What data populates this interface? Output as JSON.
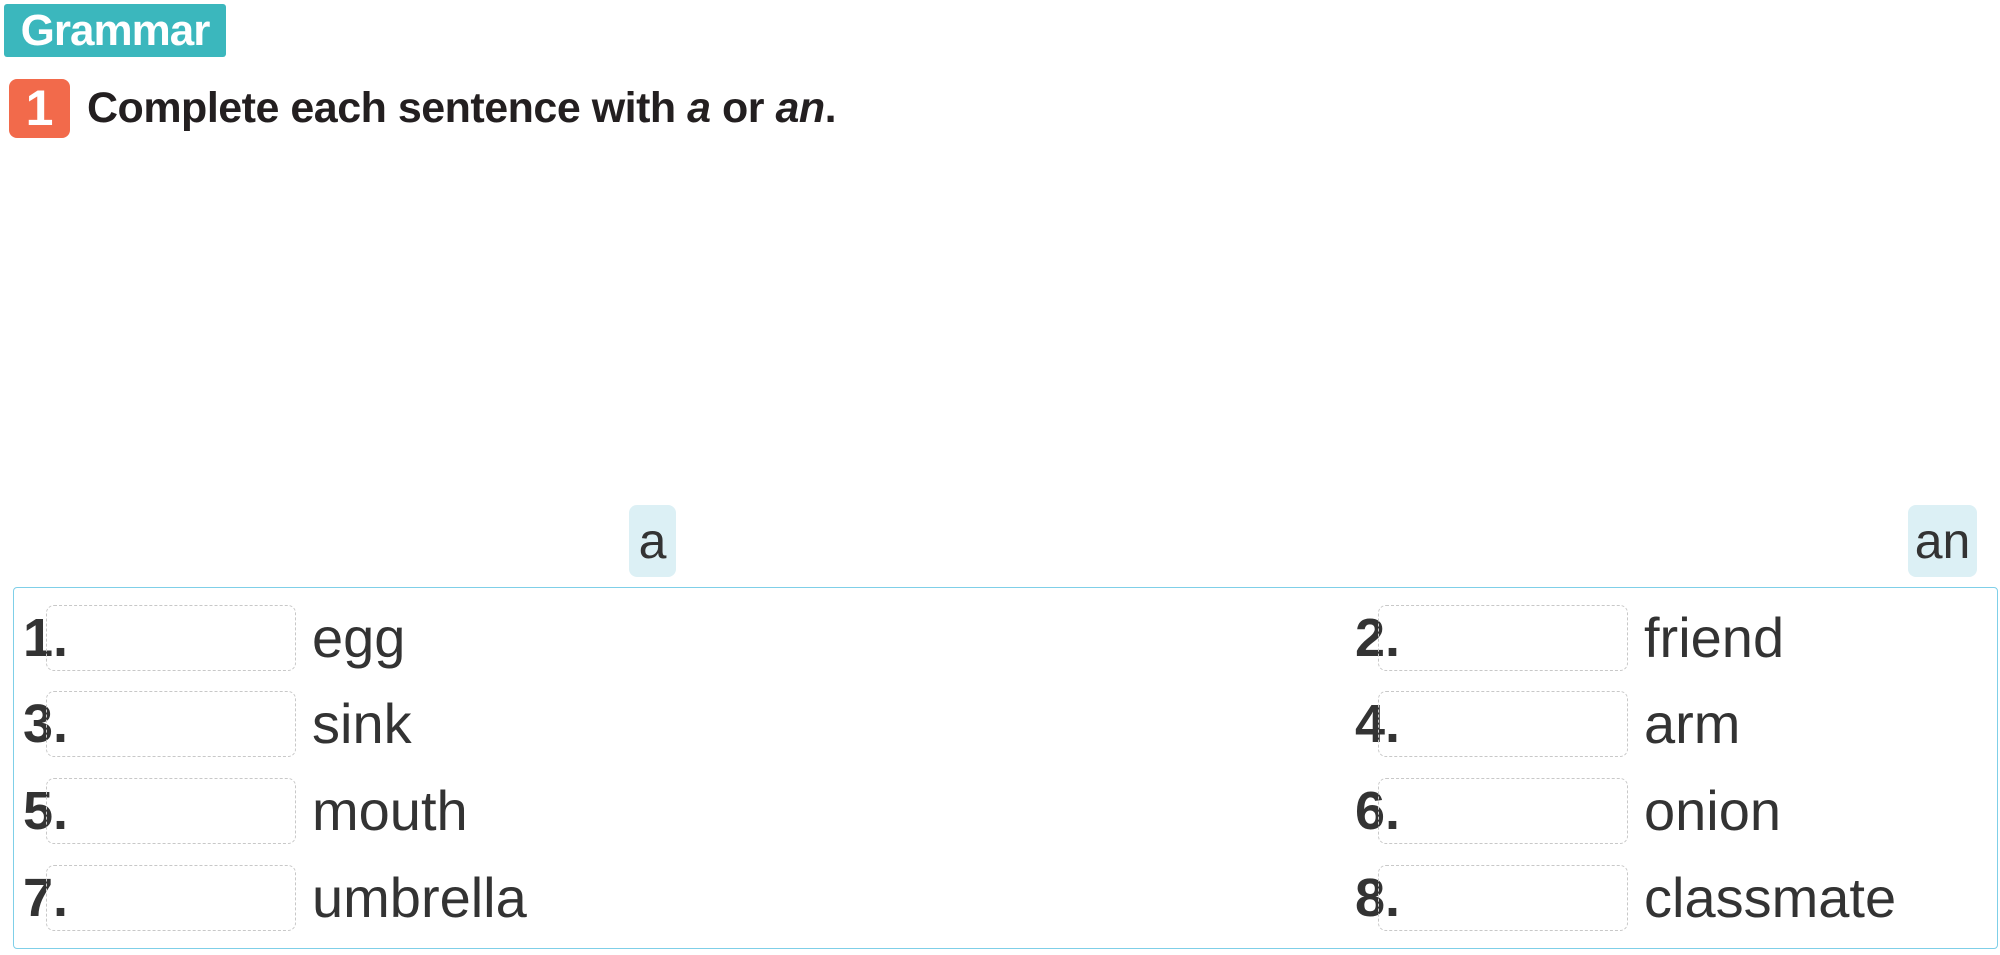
{
  "section": {
    "label": "Grammar",
    "color": "#3bb7bd"
  },
  "exercise": {
    "number": "1",
    "number_color": "#f26a4b",
    "instruction_prefix": "Complete each sentence with ",
    "option_a": "a",
    "instruction_mid": " or ",
    "option_an": "an",
    "instruction_suffix": "."
  },
  "choices": [
    "a",
    "an"
  ],
  "items": [
    {
      "num": "1.",
      "word": "egg",
      "answer": ""
    },
    {
      "num": "2.",
      "word": "friend",
      "answer": ""
    },
    {
      "num": "3.",
      "word": "sink",
      "answer": ""
    },
    {
      "num": "4.",
      "word": "arm",
      "answer": ""
    },
    {
      "num": "5.",
      "word": "mouth",
      "answer": ""
    },
    {
      "num": "6.",
      "word": "onion",
      "answer": ""
    },
    {
      "num": "7.",
      "word": "umbrella",
      "answer": ""
    },
    {
      "num": "8.",
      "word": "classmate",
      "answer": ""
    }
  ]
}
